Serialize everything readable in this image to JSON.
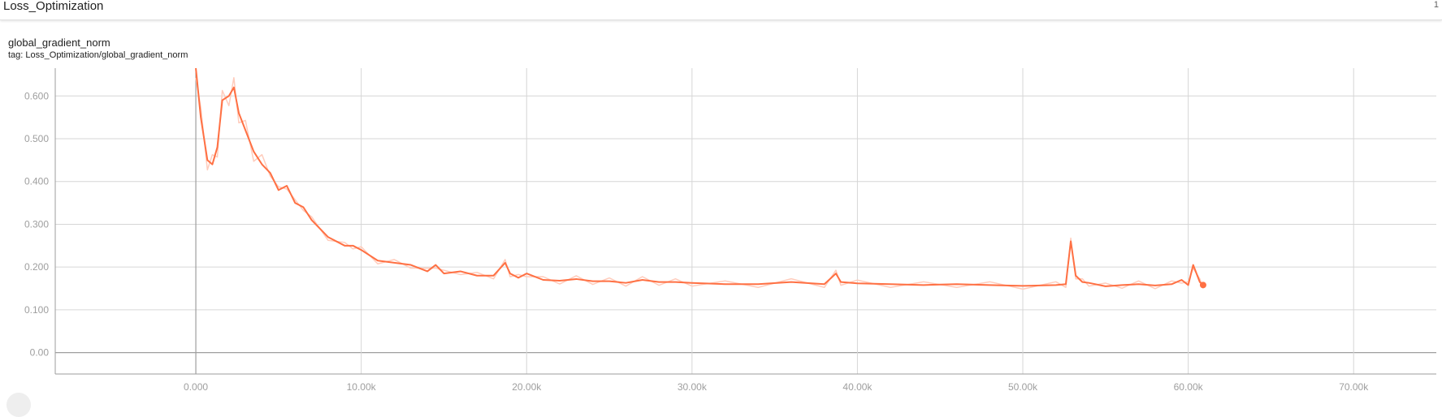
{
  "section": {
    "title": "Loss_Optimization",
    "count": "1"
  },
  "card": {
    "title": "global_gradient_norm",
    "tag": "tag: Loss_Optimization/global_gradient_norm"
  },
  "colors": {
    "series": "#ff7043",
    "raw": "#ffccbc",
    "grid": "#d6d6d6",
    "axis": "#9e9e9e",
    "zero_line": "#9e9e9e"
  },
  "chart_data": {
    "type": "line",
    "title": "global_gradient_norm",
    "xlabel": "",
    "ylabel": "",
    "xlim": [
      -8500,
      75000
    ],
    "ylim": [
      -0.05,
      0.665
    ],
    "x_ticks": [
      0,
      10000,
      20000,
      30000,
      40000,
      50000,
      60000,
      70000
    ],
    "x_tick_labels": [
      "0.000",
      "10.00k",
      "20.00k",
      "30.00k",
      "40.00k",
      "50.00k",
      "60.00k",
      "70.00k"
    ],
    "y_ticks": [
      0,
      0.1,
      0.2,
      0.3,
      0.4,
      0.5,
      0.6
    ],
    "y_tick_labels": [
      "0.00",
      "0.100",
      "0.200",
      "0.300",
      "0.400",
      "0.500",
      "0.600"
    ],
    "grid": true,
    "legend": "none",
    "series": [
      {
        "smoothed": true,
        "x": [
          0,
          300,
          700,
          1000,
          1300,
          1600,
          2000,
          2300,
          2600,
          3000,
          3500,
          4000,
          4500,
          5000,
          5500,
          6000,
          6500,
          7000,
          8000,
          9000,
          9500,
          10000,
          11000,
          12000,
          13000,
          14000,
          14500,
          15000,
          16000,
          17000,
          18000,
          18700,
          19000,
          19500,
          20000,
          21000,
          22000,
          23000,
          24000,
          25000,
          26000,
          27000,
          28000,
          29000,
          30000,
          32000,
          34000,
          36000,
          38000,
          38700,
          39000,
          40000,
          42000,
          44000,
          46000,
          48000,
          50000,
          52000,
          52600,
          52900,
          53200,
          53600,
          54000,
          55000,
          56000,
          57000,
          58000,
          59000,
          59600,
          60000,
          60300,
          60700,
          60900
        ],
        "y": [
          0.665,
          0.55,
          0.45,
          0.44,
          0.48,
          0.59,
          0.6,
          0.62,
          0.56,
          0.52,
          0.47,
          0.44,
          0.42,
          0.38,
          0.39,
          0.35,
          0.34,
          0.31,
          0.27,
          0.25,
          0.25,
          0.24,
          0.215,
          0.21,
          0.205,
          0.19,
          0.205,
          0.185,
          0.19,
          0.18,
          0.18,
          0.21,
          0.185,
          0.175,
          0.185,
          0.17,
          0.168,
          0.172,
          0.167,
          0.167,
          0.163,
          0.17,
          0.165,
          0.165,
          0.163,
          0.16,
          0.16,
          0.165,
          0.16,
          0.185,
          0.165,
          0.162,
          0.16,
          0.158,
          0.16,
          0.158,
          0.156,
          0.158,
          0.16,
          0.26,
          0.18,
          0.165,
          0.163,
          0.155,
          0.158,
          0.16,
          0.157,
          0.16,
          0.17,
          0.158,
          0.205,
          0.165,
          0.158
        ]
      }
    ]
  }
}
